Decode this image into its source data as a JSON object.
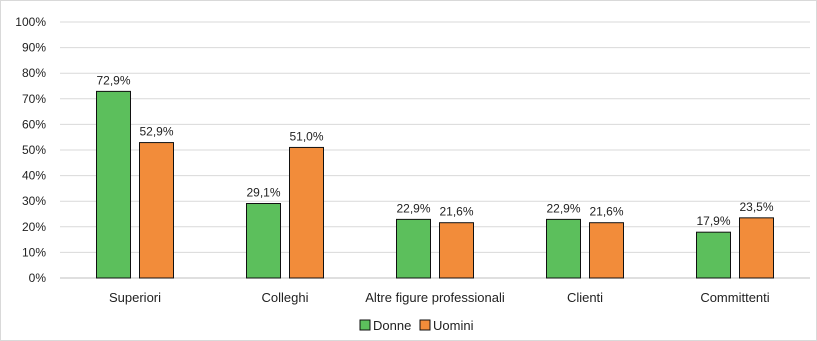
{
  "chart_data": {
    "type": "bar",
    "categories": [
      "Superiori",
      "Colleghi",
      "Altre figure professionali",
      "Clienti",
      "Committenti"
    ],
    "series": [
      {
        "name": "Donne",
        "values": [
          72.9,
          29.1,
          22.9,
          22.9,
          17.9
        ],
        "labels": [
          "72,9%",
          "29,1%",
          "22,9%",
          "22,9%",
          "17,9%"
        ],
        "color": "#5cbf5c"
      },
      {
        "name": "Uomini",
        "values": [
          52.9,
          51.0,
          21.6,
          21.6,
          23.5
        ],
        "labels": [
          "52,9%",
          "51,0%",
          "21,6%",
          "21,6%",
          "23,5%"
        ],
        "color": "#f28c3a"
      }
    ],
    "y_ticks": [
      "0%",
      "10%",
      "20%",
      "30%",
      "40%",
      "50%",
      "60%",
      "70%",
      "80%",
      "90%",
      "100%"
    ],
    "ylim": [
      0,
      100
    ],
    "grid": true,
    "legend_position": "bottom-center",
    "title": "",
    "xlabel": "",
    "ylabel": ""
  }
}
